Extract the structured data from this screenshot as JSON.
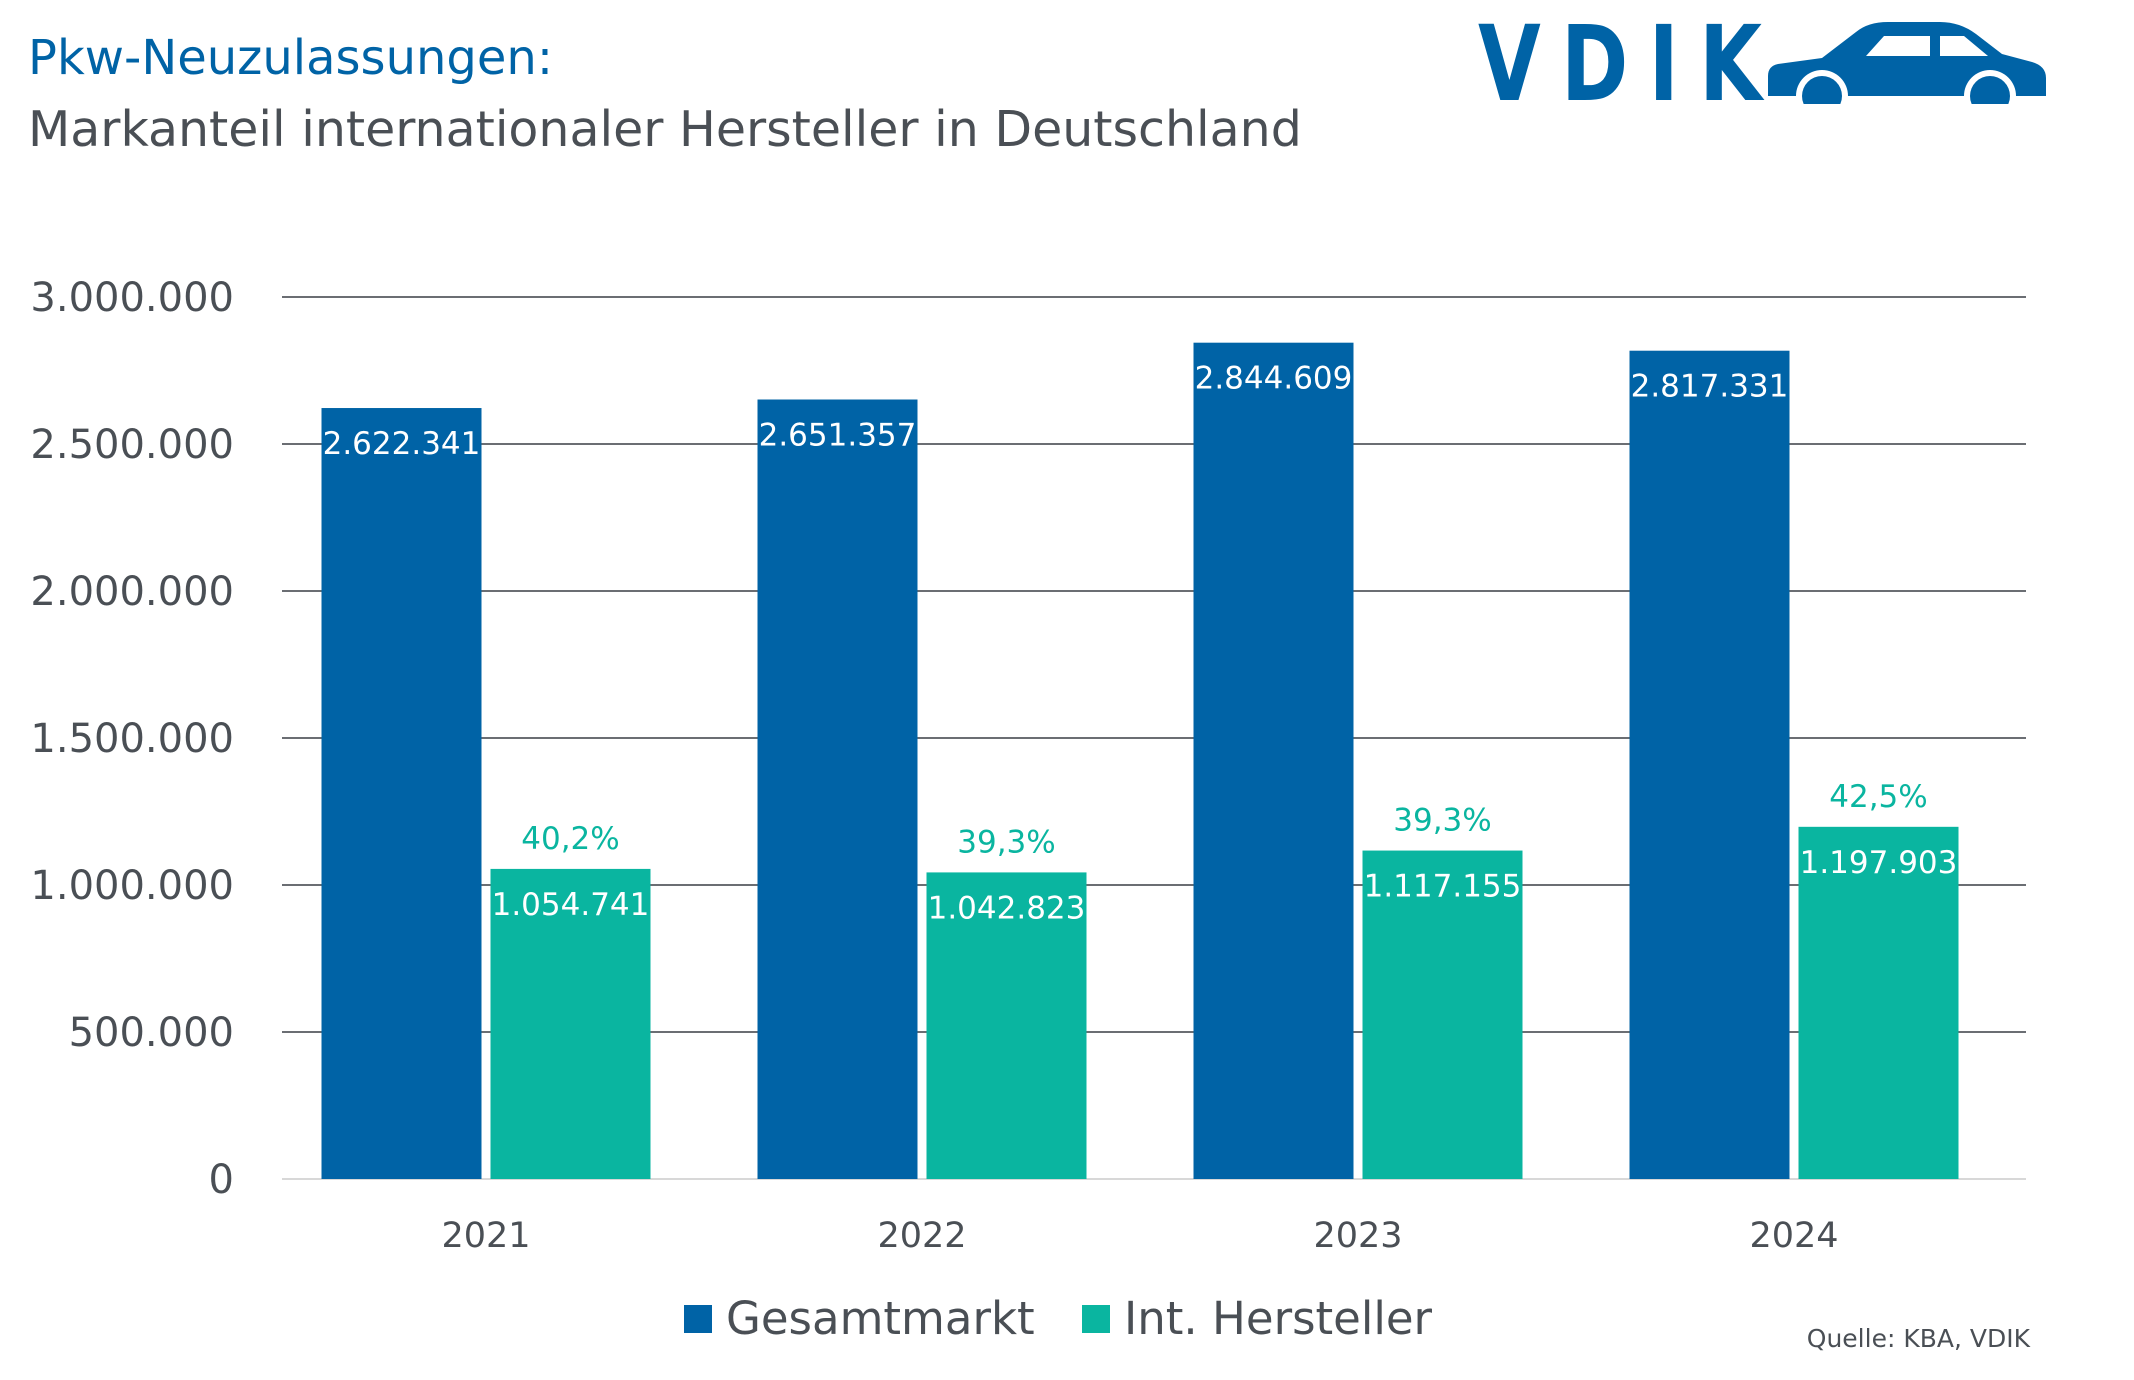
{
  "header": {
    "title": "Pkw-Neuzulassungen:",
    "subtitle": "Markanteil internationaler Hersteller in Deutschland"
  },
  "logo": {
    "text": "VDIK",
    "icon": "car-icon",
    "color": "#0063a6"
  },
  "source": "Quelle: KBA, VDIK",
  "colors": {
    "gesamtmarkt": "#0063a6",
    "int_hersteller": "#0ab5a0",
    "text": "#4a4f55"
  },
  "chart_data": {
    "type": "bar",
    "categories": [
      "2021",
      "2022",
      "2023",
      "2024"
    ],
    "series": [
      {
        "name": "Gesamtmarkt",
        "color": "#0063a6",
        "values": [
          2622341,
          2651357,
          2844609,
          2817331
        ],
        "labels": [
          "2.622.341",
          "2.651.357",
          "2.844.609",
          "2.817.331"
        ]
      },
      {
        "name": "Int. Hersteller",
        "color": "#0ab5a0",
        "values": [
          1054741,
          1042823,
          1117155,
          1197903
        ],
        "labels": [
          "1.054.741",
          "1.042.823",
          "1.117.155",
          "1.197.903"
        ],
        "share_labels": [
          "40,2%",
          "39,3%",
          "39,3%",
          "42,5%"
        ]
      }
    ],
    "ylim": [
      0,
      3000000
    ],
    "yticks": [
      0,
      500000,
      1000000,
      1500000,
      2000000,
      2500000,
      3000000
    ],
    "ytick_labels": [
      "0",
      "500.000",
      "1.000.000",
      "1.500.000",
      "2.000.000",
      "2.500.000",
      "3.000.000"
    ],
    "grid": true,
    "legend_position": "bottom"
  }
}
